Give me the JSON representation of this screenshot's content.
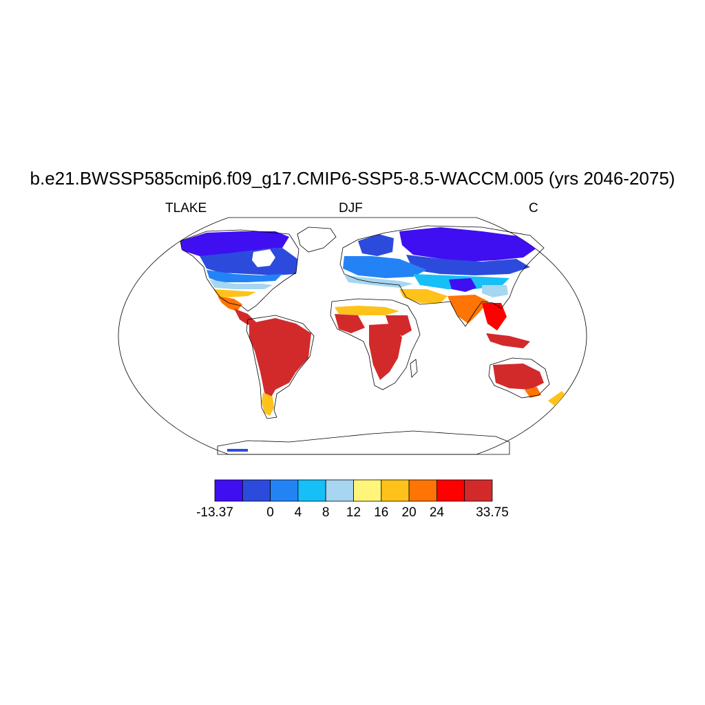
{
  "title": "b.e21.BWSSP585cmip6.f09_g17.CMIP6-SSP5-8.5-WACCM.005 (yrs 2046-2075)",
  "left_string": "TLAKE",
  "center_string": "DJF",
  "right_string": "C",
  "map": {
    "projection": "robinson",
    "variable": "TLAKE",
    "season": "DJF",
    "units": "C"
  },
  "colorbar": {
    "colors": [
      "#3f0ff2",
      "#2c4bdc",
      "#2383f5",
      "#16bff5",
      "#a6d6f0",
      "#fff57a",
      "#fec21a",
      "#fe7405",
      "#ff0000",
      "#d22a2a"
    ],
    "labels": [
      {
        "text": "-13.37",
        "edge": 0
      },
      {
        "text": "0",
        "edge": 2
      },
      {
        "text": "4",
        "edge": 3
      },
      {
        "text": "8",
        "edge": 4
      },
      {
        "text": "12",
        "edge": 5
      },
      {
        "text": "16",
        "edge": 6
      },
      {
        "text": "20",
        "edge": 7
      },
      {
        "text": "24",
        "edge": 8
      },
      {
        "text": "33.75",
        "edge": 10
      }
    ]
  }
}
